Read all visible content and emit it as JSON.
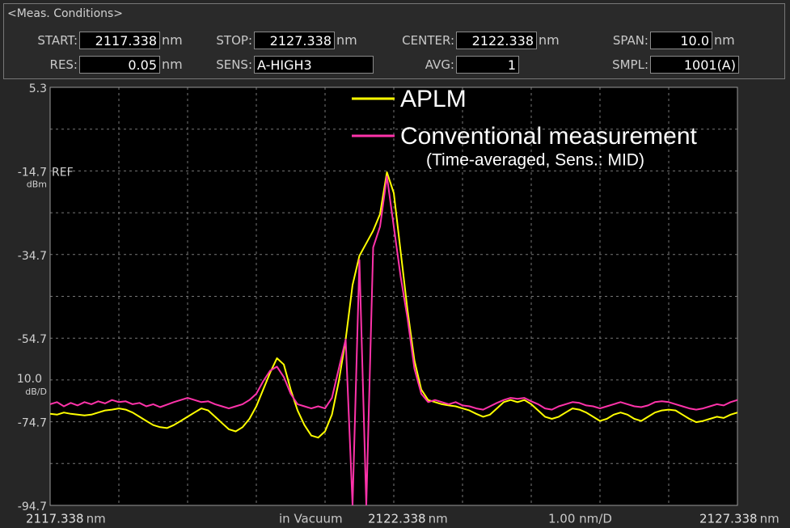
{
  "conditions": {
    "title": "<Meas. Conditions>",
    "fields": [
      {
        "label": "START:",
        "value": "2117.338",
        "unit": "nm"
      },
      {
        "label": "STOP:",
        "value": "2127.338",
        "unit": "nm"
      },
      {
        "label": "CENTER:",
        "value": "2122.338",
        "unit": "nm"
      },
      {
        "label": "SPAN:",
        "value": "10.0",
        "unit": "nm"
      },
      {
        "label": "RES:",
        "value": "0.05",
        "unit": "nm"
      },
      {
        "label": "SENS:",
        "value": "A-HIGH3"
      },
      {
        "label": "AVG:",
        "value": "1"
      },
      {
        "label": "SMPL:",
        "value": "1001(A)"
      }
    ]
  },
  "chart_data": {
    "type": "line",
    "annotation": "(Time-averaged, Sens.: MID)",
    "ref_label": "REF",
    "y_unit": "dBm",
    "y_scale_value": "10.0",
    "y_scale_unit": "dB/D",
    "x_unit": "nm",
    "x_medium": "in Vacuum",
    "x_scale_label": "1.00 nm/D",
    "xlim": [
      2117.338,
      2127.338
    ],
    "xticks": [
      2117.338,
      2122.338,
      2127.338
    ],
    "xgrid": [
      2117.338,
      2118.338,
      2119.338,
      2120.338,
      2121.338,
      2122.338,
      2123.338,
      2124.338,
      2125.338,
      2126.338,
      2127.338
    ],
    "ylim": [
      -94.7,
      5.3
    ],
    "yticks": [
      5.3,
      -14.7,
      -34.7,
      -54.7,
      -74.7,
      -94.7
    ],
    "ygrid": [
      5.3,
      -4.7,
      -14.7,
      -24.7,
      -34.7,
      -44.7,
      -54.7,
      -64.7,
      -74.7,
      -84.7,
      -94.7
    ],
    "grid": true,
    "x": [
      2117.338,
      2117.438,
      2117.538,
      2117.638,
      2117.738,
      2117.838,
      2117.938,
      2118.038,
      2118.138,
      2118.238,
      2118.338,
      2118.438,
      2118.538,
      2118.638,
      2118.738,
      2118.838,
      2118.938,
      2119.038,
      2119.138,
      2119.238,
      2119.338,
      2119.438,
      2119.538,
      2119.638,
      2119.738,
      2119.838,
      2119.938,
      2120.038,
      2120.138,
      2120.238,
      2120.338,
      2120.438,
      2120.538,
      2120.638,
      2120.738,
      2120.838,
      2120.938,
      2121.038,
      2121.138,
      2121.238,
      2121.338,
      2121.438,
      2121.538,
      2121.638,
      2121.738,
      2121.838,
      2121.938,
      2122.038,
      2122.138,
      2122.238,
      2122.338,
      2122.438,
      2122.538,
      2122.638,
      2122.738,
      2122.838,
      2122.938,
      2123.038,
      2123.138,
      2123.238,
      2123.338,
      2123.438,
      2123.538,
      2123.638,
      2123.738,
      2123.838,
      2123.938,
      2124.038,
      2124.138,
      2124.238,
      2124.338,
      2124.438,
      2124.538,
      2124.638,
      2124.738,
      2124.838,
      2124.938,
      2125.038,
      2125.138,
      2125.238,
      2125.338,
      2125.438,
      2125.538,
      2125.638,
      2125.738,
      2125.838,
      2125.938,
      2126.038,
      2126.138,
      2126.238,
      2126.338,
      2126.438,
      2126.538,
      2126.638,
      2126.738,
      2126.838,
      2126.938,
      2127.038,
      2127.138,
      2127.238,
      2127.338
    ],
    "series": [
      {
        "name": "APLM",
        "color": "#ffff00",
        "values": [
          -72.8,
          -73,
          -72.5,
          -72.8,
          -73,
          -73.2,
          -73,
          -72.5,
          -72,
          -71.8,
          -71.5,
          -71.8,
          -72.5,
          -73.5,
          -74.5,
          -75.5,
          -76,
          -76.2,
          -75.5,
          -74.5,
          -73.5,
          -72.5,
          -71.5,
          -72,
          -73.5,
          -75,
          -76.5,
          -77,
          -76,
          -74,
          -71,
          -67,
          -63,
          -59.5,
          -61,
          -67,
          -72,
          -75.5,
          -78,
          -78.5,
          -77,
          -73,
          -65,
          -55,
          -42,
          -35,
          -32,
          -29,
          -25,
          -15,
          -20,
          -34,
          -48,
          -60,
          -67,
          -69.5,
          -70,
          -70.5,
          -70.8,
          -71,
          -71.5,
          -72,
          -72.8,
          -73.5,
          -73,
          -71.5,
          -70,
          -69.5,
          -70,
          -69.5,
          -70.5,
          -72,
          -73.5,
          -74,
          -73.5,
          -72.5,
          -71.5,
          -71.8,
          -72.5,
          -73.5,
          -74.5,
          -74,
          -73,
          -72.5,
          -73,
          -74,
          -74.5,
          -73.5,
          -72.5,
          -72,
          -71.8,
          -72,
          -73,
          -74,
          -74.8,
          -74.5,
          -74,
          -73.5,
          -73.8,
          -73,
          -72.5
        ]
      },
      {
        "name": "Conventional measurement",
        "color": "#ff33aa",
        "values": [
          -70.5,
          -70,
          -71,
          -70.2,
          -70.8,
          -70,
          -70.5,
          -69.8,
          -70.3,
          -69.5,
          -70,
          -69.8,
          -70.5,
          -70.2,
          -71,
          -70.5,
          -71.2,
          -70.6,
          -70,
          -69.5,
          -69,
          -69.5,
          -70,
          -69.8,
          -70.5,
          -71,
          -71.5,
          -71,
          -70.5,
          -69.5,
          -68,
          -65,
          -62.5,
          -61.5,
          -64,
          -68,
          -70.5,
          -71,
          -71.5,
          -71,
          -71.5,
          -69,
          -62,
          -55,
          -94.7,
          -36,
          -94.7,
          -33,
          -28,
          -16,
          -28,
          -40,
          -50,
          -62,
          -68,
          -70,
          -69.5,
          -70,
          -70.5,
          -70,
          -70.8,
          -71,
          -71.5,
          -71.8,
          -71,
          -70.2,
          -69.5,
          -69,
          -69.2,
          -69,
          -69.8,
          -70.5,
          -71.5,
          -71.8,
          -71,
          -70.5,
          -70,
          -70.2,
          -70.8,
          -71,
          -71.5,
          -71,
          -70.5,
          -70,
          -70.5,
          -71,
          -71.2,
          -70.8,
          -70,
          -69.8,
          -70,
          -70.5,
          -71,
          -71.5,
          -71.8,
          -71.5,
          -71,
          -70.5,
          -70.8,
          -70,
          -69.5
        ]
      }
    ]
  }
}
